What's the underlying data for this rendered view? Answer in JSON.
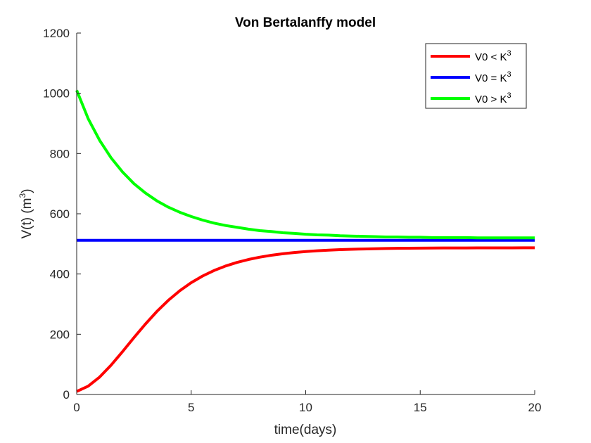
{
  "chart_data": {
    "type": "line",
    "title": "Von Bertalanffy model",
    "xlabel": "time(days)",
    "ylabel": {
      "base": "V(t) (m",
      "sup": "3",
      "tail": ")"
    },
    "xlim": [
      0,
      20
    ],
    "ylim": [
      0,
      1200
    ],
    "xticks": [
      0,
      5,
      10,
      15,
      20
    ],
    "yticks": [
      0,
      200,
      400,
      600,
      800,
      1000,
      1200
    ],
    "grid": false,
    "legend_position": "top-right",
    "series": [
      {
        "name": {
          "base": "V0 < K",
          "sup": "3"
        },
        "color": "#ff0000",
        "x": [
          0,
          0.5,
          1,
          1.5,
          2,
          2.5,
          3,
          3.5,
          4,
          4.5,
          5,
          5.5,
          6,
          6.5,
          7,
          7.5,
          8,
          8.5,
          9,
          9.5,
          10,
          10.5,
          11,
          11.5,
          12,
          12.5,
          13,
          13.5,
          14,
          14.5,
          15,
          15.5,
          16,
          16.5,
          17,
          17.5,
          18,
          18.5,
          19,
          19.5,
          20
        ],
        "y": [
          10,
          27.5,
          57.7,
          97.2,
          142.1,
          188.7,
          233.8,
          275.5,
          312.5,
          344.3,
          371.2,
          393.4,
          411.7,
          426.5,
          438.5,
          448.2,
          456.0,
          462.2,
          467.3,
          471.3,
          474.5,
          477.1,
          479.1,
          480.8,
          482.1,
          483.1,
          484.0,
          484.6,
          485.2,
          485.6,
          485.9,
          486.2,
          486.4,
          486.5,
          486.6,
          486.7,
          486.8,
          486.9,
          486.9,
          487.0,
          487.0
        ]
      },
      {
        "name": {
          "base": "V0 = K",
          "sup": "3"
        },
        "color": "#0000ff",
        "x": [
          0,
          20
        ],
        "y": [
          512,
          512
        ]
      },
      {
        "name": {
          "base": "V0 > K",
          "sup": "3"
        },
        "color": "#00ff00",
        "x": [
          0,
          0.5,
          1,
          1.5,
          2,
          2.5,
          3,
          3.5,
          4,
          4.5,
          5,
          5.5,
          6,
          6.5,
          7,
          7.5,
          8,
          8.5,
          9,
          9.5,
          10,
          10.5,
          11,
          11.5,
          12,
          12.5,
          13,
          13.5,
          14,
          14.5,
          15,
          15.5,
          16,
          16.5,
          17,
          17.5,
          18,
          18.5,
          19,
          19.5,
          20
        ],
        "y": [
          1010,
          916,
          844,
          786,
          739,
          700,
          669,
          643,
          622,
          605,
          591,
          579,
          569,
          561,
          555,
          549,
          544,
          541,
          537,
          535,
          532,
          530,
          529,
          527,
          526,
          525,
          524,
          523,
          523,
          522,
          522,
          521,
          521,
          521,
          521,
          520,
          520,
          520,
          520,
          520,
          520
        ]
      }
    ]
  }
}
